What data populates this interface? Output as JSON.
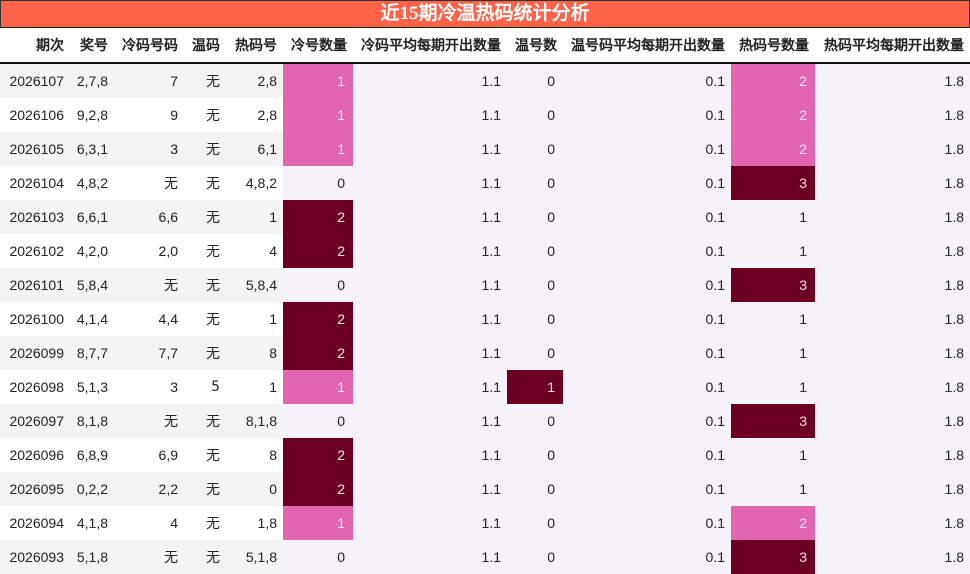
{
  "title": "近15期冷温热码统计分析",
  "colors": {
    "title_bg": "#ff6347",
    "highlight_light": "#e066b0",
    "highlight_dark": "#6b0020",
    "stat_bg": "#f5f3f9",
    "row_alt_bg": "#f4f4f4"
  },
  "columns": [
    "期次",
    "奖号",
    "冷码号码",
    "温码",
    "热码号",
    "冷号数量",
    "冷码平均每期开出数量",
    "温号数",
    "温号码平均每期开出数量",
    "热码号数量",
    "热码平均每期开出数量"
  ],
  "rows": [
    {
      "period": "2026107",
      "draw": "2,7,8",
      "cold": "7",
      "warm": "无",
      "hot": "2,8",
      "cold_count": "1",
      "cold_avg": "1.1",
      "warm_count": "0",
      "warm_avg": "0.1",
      "hot_count": "2",
      "hot_avg": "1.8",
      "cold_hl": "hl1",
      "warm_hl": "",
      "hot_hl": "hl1"
    },
    {
      "period": "2026106",
      "draw": "9,2,8",
      "cold": "9",
      "warm": "无",
      "hot": "2,8",
      "cold_count": "1",
      "cold_avg": "1.1",
      "warm_count": "0",
      "warm_avg": "0.1",
      "hot_count": "2",
      "hot_avg": "1.8",
      "cold_hl": "hl1",
      "warm_hl": "",
      "hot_hl": "hl1"
    },
    {
      "period": "2026105",
      "draw": "6,3,1",
      "cold": "3",
      "warm": "无",
      "hot": "6,1",
      "cold_count": "1",
      "cold_avg": "1.1",
      "warm_count": "0",
      "warm_avg": "0.1",
      "hot_count": "2",
      "hot_avg": "1.8",
      "cold_hl": "hl1",
      "warm_hl": "",
      "hot_hl": "hl1"
    },
    {
      "period": "2026104",
      "draw": "4,8,2",
      "cold": "无",
      "warm": "无",
      "hot": "4,8,2",
      "cold_count": "0",
      "cold_avg": "1.1",
      "warm_count": "0",
      "warm_avg": "0.1",
      "hot_count": "3",
      "hot_avg": "1.8",
      "cold_hl": "",
      "warm_hl": "",
      "hot_hl": "hl2"
    },
    {
      "period": "2026103",
      "draw": "6,6,1",
      "cold": "6,6",
      "warm": "无",
      "hot": "1",
      "cold_count": "2",
      "cold_avg": "1.1",
      "warm_count": "0",
      "warm_avg": "0.1",
      "hot_count": "1",
      "hot_avg": "1.8",
      "cold_hl": "hl2",
      "warm_hl": "",
      "hot_hl": ""
    },
    {
      "period": "2026102",
      "draw": "4,2,0",
      "cold": "2,0",
      "warm": "无",
      "hot": "4",
      "cold_count": "2",
      "cold_avg": "1.1",
      "warm_count": "0",
      "warm_avg": "0.1",
      "hot_count": "1",
      "hot_avg": "1.8",
      "cold_hl": "hl2",
      "warm_hl": "",
      "hot_hl": ""
    },
    {
      "period": "2026101",
      "draw": "5,8,4",
      "cold": "无",
      "warm": "无",
      "hot": "5,8,4",
      "cold_count": "0",
      "cold_avg": "1.1",
      "warm_count": "0",
      "warm_avg": "0.1",
      "hot_count": "3",
      "hot_avg": "1.8",
      "cold_hl": "",
      "warm_hl": "",
      "hot_hl": "hl2"
    },
    {
      "period": "2026100",
      "draw": "4,1,4",
      "cold": "4,4",
      "warm": "无",
      "hot": "1",
      "cold_count": "2",
      "cold_avg": "1.1",
      "warm_count": "0",
      "warm_avg": "0.1",
      "hot_count": "1",
      "hot_avg": "1.8",
      "cold_hl": "hl2",
      "warm_hl": "",
      "hot_hl": ""
    },
    {
      "period": "2026099",
      "draw": "8,7,7",
      "cold": "7,7",
      "warm": "无",
      "hot": "8",
      "cold_count": "2",
      "cold_avg": "1.1",
      "warm_count": "0",
      "warm_avg": "0.1",
      "hot_count": "1",
      "hot_avg": "1.8",
      "cold_hl": "hl2",
      "warm_hl": "",
      "hot_hl": ""
    },
    {
      "period": "2026098",
      "draw": "5,1,3",
      "cold": "3",
      "warm": "5",
      "hot": "1",
      "cold_count": "1",
      "cold_avg": "1.1",
      "warm_count": "1",
      "warm_avg": "0.1",
      "hot_count": "1",
      "hot_avg": "1.8",
      "cold_hl": "hl1",
      "warm_hl": "hl2",
      "hot_hl": ""
    },
    {
      "period": "2026097",
      "draw": "8,1,8",
      "cold": "无",
      "warm": "无",
      "hot": "8,1,8",
      "cold_count": "0",
      "cold_avg": "1.1",
      "warm_count": "0",
      "warm_avg": "0.1",
      "hot_count": "3",
      "hot_avg": "1.8",
      "cold_hl": "",
      "warm_hl": "",
      "hot_hl": "hl2"
    },
    {
      "period": "2026096",
      "draw": "6,8,9",
      "cold": "6,9",
      "warm": "无",
      "hot": "8",
      "cold_count": "2",
      "cold_avg": "1.1",
      "warm_count": "0",
      "warm_avg": "0.1",
      "hot_count": "1",
      "hot_avg": "1.8",
      "cold_hl": "hl2",
      "warm_hl": "",
      "hot_hl": ""
    },
    {
      "period": "2026095",
      "draw": "0,2,2",
      "cold": "2,2",
      "warm": "无",
      "hot": "0",
      "cold_count": "2",
      "cold_avg": "1.1",
      "warm_count": "0",
      "warm_avg": "0.1",
      "hot_count": "1",
      "hot_avg": "1.8",
      "cold_hl": "hl2",
      "warm_hl": "",
      "hot_hl": ""
    },
    {
      "period": "2026094",
      "draw": "4,1,8",
      "cold": "4",
      "warm": "无",
      "hot": "1,8",
      "cold_count": "1",
      "cold_avg": "1.1",
      "warm_count": "0",
      "warm_avg": "0.1",
      "hot_count": "2",
      "hot_avg": "1.8",
      "cold_hl": "hl1",
      "warm_hl": "",
      "hot_hl": "hl1"
    },
    {
      "period": "2026093",
      "draw": "5,1,8",
      "cold": "无",
      "warm": "无",
      "hot": "5,1,8",
      "cold_count": "0",
      "cold_avg": "1.1",
      "warm_count": "0",
      "warm_avg": "0.1",
      "hot_count": "3",
      "hot_avg": "1.8",
      "cold_hl": "",
      "warm_hl": "",
      "hot_hl": "hl2"
    }
  ]
}
